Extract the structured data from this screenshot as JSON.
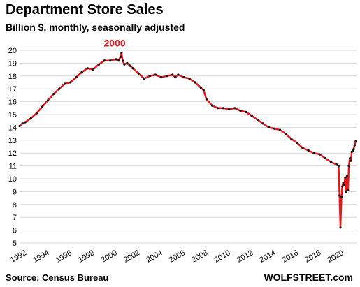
{
  "title": "Department Store Sales",
  "subtitle": "Billion $, monthly, seasonally adjusted",
  "source": "Source: Census Bureau",
  "brand": "WOLFSTREET.com",
  "colors": {
    "line": "#e8161b",
    "marker": "#111111",
    "grid": "#d9d9d9",
    "annotation": "#e8161b"
  },
  "chart_data": {
    "type": "line",
    "title": "Department Store Sales",
    "subtitle": "Billion $, monthly, seasonally adjusted",
    "xlabel": "",
    "ylabel": "",
    "xlim": [
      1992,
      2021.75
    ],
    "ylim": [
      5,
      20
    ],
    "yticks": [
      5,
      6,
      7,
      8,
      9,
      10,
      11,
      12,
      13,
      14,
      15,
      16,
      17,
      18,
      19,
      20
    ],
    "xticks": [
      "1992",
      "1994",
      "1996",
      "1998",
      "2000",
      "2002",
      "2004",
      "2006",
      "2008",
      "2010",
      "2012",
      "2014",
      "2016",
      "2018",
      "2020"
    ],
    "grid": "horizontal",
    "annotations": [
      {
        "text": "2000",
        "x": 2000.4,
        "y": 20.3
      }
    ],
    "series": [
      {
        "x": [
          1992.0,
          1992.25,
          1992.5,
          1993.0,
          1993.5,
          1994.0,
          1994.5,
          1995.0,
          1995.5,
          1996.0,
          1996.5,
          1997.0,
          1997.5,
          1998.0,
          1998.5,
          1999.0,
          1999.5,
          2000.0,
          2000.5,
          2000.75,
          2000.92,
          2001.0,
          2001.1,
          2001.25,
          2001.5,
          2001.75,
          2002.0,
          2002.5,
          2003.0,
          2003.5,
          2004.0,
          2004.5,
          2005.0,
          2005.5,
          2005.75,
          2006.0,
          2006.5,
          2007.0,
          2007.5,
          2008.0,
          2008.25,
          2008.5,
          2009.0,
          2009.5,
          2010.0,
          2010.5,
          2011.0,
          2011.5,
          2012.0,
          2012.5,
          2013.0,
          2013.5,
          2014.0,
          2014.5,
          2015.0,
          2015.5,
          2016.0,
          2016.5,
          2017.0,
          2017.5,
          2018.0,
          2018.5,
          2019.0,
          2019.5,
          2020.0,
          2020.17,
          2020.25,
          2020.33,
          2020.42,
          2020.5,
          2020.58,
          2020.67,
          2020.75,
          2020.83,
          2020.92,
          2021.0,
          2021.08,
          2021.17,
          2021.25,
          2021.33,
          2021.42,
          2021.5,
          2021.58,
          2021.67
        ],
        "values": [
          14.1,
          14.3,
          14.4,
          14.7,
          15.1,
          15.6,
          16.1,
          16.6,
          17.0,
          17.4,
          17.5,
          17.9,
          18.3,
          18.6,
          18.5,
          18.9,
          19.2,
          19.2,
          19.3,
          19.2,
          19.5,
          19.8,
          19.2,
          18.9,
          19.0,
          18.8,
          18.6,
          18.2,
          17.8,
          18.0,
          18.1,
          17.9,
          18.0,
          18.1,
          17.9,
          18.1,
          17.9,
          17.8,
          17.5,
          17.1,
          16.9,
          16.2,
          15.7,
          15.5,
          15.5,
          15.4,
          15.5,
          15.3,
          15.2,
          14.9,
          14.6,
          14.3,
          14.0,
          13.9,
          13.8,
          13.5,
          13.1,
          12.8,
          12.4,
          12.2,
          12.0,
          11.9,
          11.6,
          11.3,
          11.1,
          11.0,
          8.7,
          6.2,
          8.6,
          9.4,
          9.7,
          9.5,
          10.1,
          9.0,
          10.2,
          9.1,
          11.0,
          11.6,
          11.4,
          12.1,
          12.2,
          12.3,
          12.6,
          12.9
        ]
      }
    ]
  }
}
